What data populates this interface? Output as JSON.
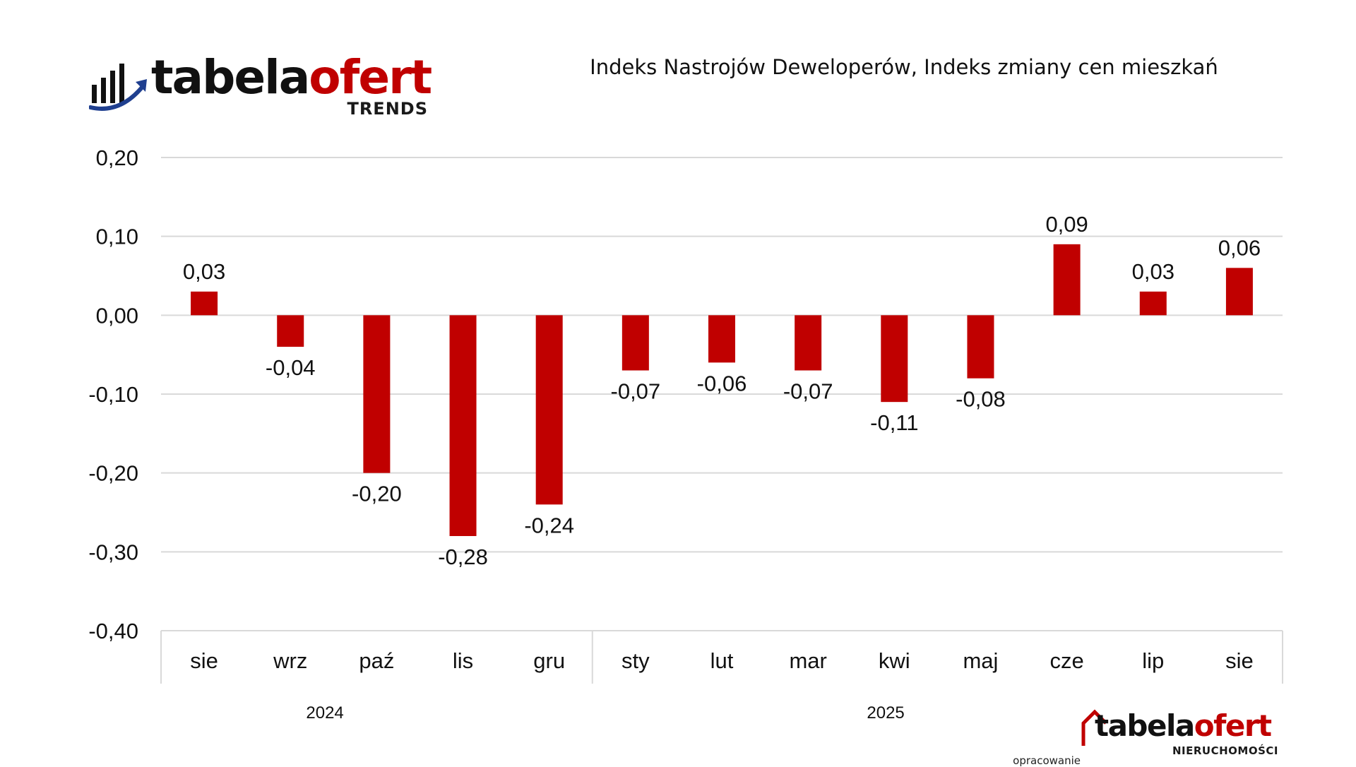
{
  "branding": {
    "top_logo": {
      "word_part1": "tabela",
      "word_part2": "ofert",
      "subtitle": "TRENDS"
    },
    "bottom_logo": {
      "word_part1": "tabela",
      "word_part2": "ofert",
      "subtitle": "NIERUCHOMOŚCI"
    },
    "credit_text": "opracowanie",
    "colors": {
      "brand_red": "#c00000",
      "brand_dark": "#111111",
      "icon_blue": "#1f3f8f"
    }
  },
  "chart_data": {
    "type": "bar",
    "title": "Indeks Nastrojów Deweloperów, Indeks zmiany cen mieszkań",
    "categories": [
      "sie",
      "wrz",
      "paź",
      "lis",
      "gru",
      "sty",
      "lut",
      "mar",
      "kwi",
      "maj",
      "cze",
      "lip",
      "sie"
    ],
    "values": [
      0.03,
      -0.04,
      -0.2,
      -0.28,
      -0.24,
      -0.07,
      -0.06,
      -0.07,
      -0.11,
      -0.08,
      0.09,
      0.03,
      0.06
    ],
    "value_labels": [
      "0,03",
      "-0,04",
      "-0,20",
      "-0,28",
      "-0,24",
      "-0,07",
      "-0,06",
      "-0,07",
      "-0,11",
      "-0,08",
      "0,09",
      "0,03",
      "0,06"
    ],
    "groups": [
      {
        "label": "2024",
        "count": 5
      },
      {
        "label": "2025",
        "count": 8
      }
    ],
    "ylim": [
      -0.4,
      0.2
    ],
    "yticks": [
      0.2,
      0.1,
      0.0,
      -0.1,
      -0.2,
      -0.3,
      -0.4
    ],
    "ytick_labels": [
      "0,20",
      "0,10",
      "0,00",
      "-0,10",
      "-0,20",
      "-0,30",
      "-0,40"
    ],
    "xlabel": "",
    "ylabel": "",
    "grid": true,
    "legend": false,
    "bar_color": "#c00000",
    "grid_color": "#d9d9d9"
  }
}
